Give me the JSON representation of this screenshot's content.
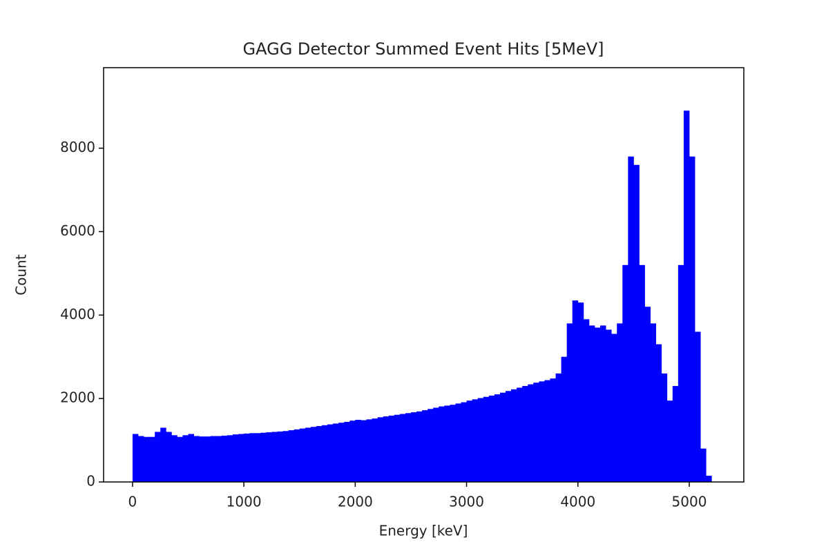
{
  "chart_data": {
    "type": "histogram",
    "title": "GAGG Detector Summed Event Hits [5MeV]",
    "x_label": "Energy [keV]",
    "y_label": "Count",
    "color": "#0000ff",
    "bins": [
      0,
      50,
      100,
      150,
      200,
      250,
      300,
      350,
      400,
      450,
      500,
      550,
      600,
      650,
      700,
      750,
      800,
      850,
      900,
      950,
      1000,
      1050,
      1100,
      1150,
      1200,
      1250,
      1300,
      1350,
      1400,
      1450,
      1500,
      1550,
      1600,
      1650,
      1700,
      1750,
      1800,
      1850,
      1900,
      1950,
      2000,
      2050,
      2100,
      2150,
      2200,
      2250,
      2300,
      2350,
      2400,
      2450,
      2500,
      2550,
      2600,
      2650,
      2700,
      2750,
      2800,
      2850,
      2900,
      2950,
      3000,
      3050,
      3100,
      3150,
      3200,
      3250,
      3300,
      3350,
      3400,
      3450,
      3500,
      3550,
      3600,
      3650,
      3700,
      3750,
      3800,
      3850,
      3900,
      3950,
      4000,
      4050,
      4100,
      4150,
      4200,
      4250,
      4300,
      4350,
      4400,
      4450,
      4500,
      4550,
      4600,
      4650,
      4700,
      4750,
      4800,
      4850,
      4900,
      4950,
      5000,
      5050,
      5100,
      5150,
      5200
    ],
    "values": [
      1150,
      1100,
      1080,
      1080,
      1200,
      1300,
      1200,
      1120,
      1080,
      1120,
      1150,
      1100,
      1090,
      1090,
      1100,
      1100,
      1110,
      1120,
      1140,
      1150,
      1160,
      1170,
      1170,
      1180,
      1190,
      1200,
      1210,
      1220,
      1240,
      1260,
      1280,
      1300,
      1320,
      1340,
      1360,
      1380,
      1400,
      1420,
      1440,
      1470,
      1490,
      1480,
      1500,
      1520,
      1550,
      1570,
      1590,
      1610,
      1630,
      1650,
      1670,
      1690,
      1720,
      1750,
      1780,
      1810,
      1830,
      1850,
      1880,
      1910,
      1950,
      1980,
      2010,
      2040,
      2070,
      2100,
      2140,
      2180,
      2220,
      2260,
      2300,
      2340,
      2380,
      2410,
      2440,
      2480,
      2600,
      3000,
      3800,
      4350,
      4300,
      3900,
      3750,
      3700,
      3750,
      3650,
      3550,
      3800,
      5200,
      7800,
      7600,
      5200,
      4200,
      3800,
      3300,
      2600,
      1950,
      2300,
      5200,
      8900,
      7800,
      3600,
      800,
      150
    ],
    "xlim": [
      -260,
      5490
    ],
    "ylim": [
      0,
      9930
    ],
    "xticks": [
      0,
      1000,
      2000,
      3000,
      4000,
      5000
    ],
    "yticks": [
      0,
      2000,
      4000,
      6000,
      8000
    ]
  }
}
